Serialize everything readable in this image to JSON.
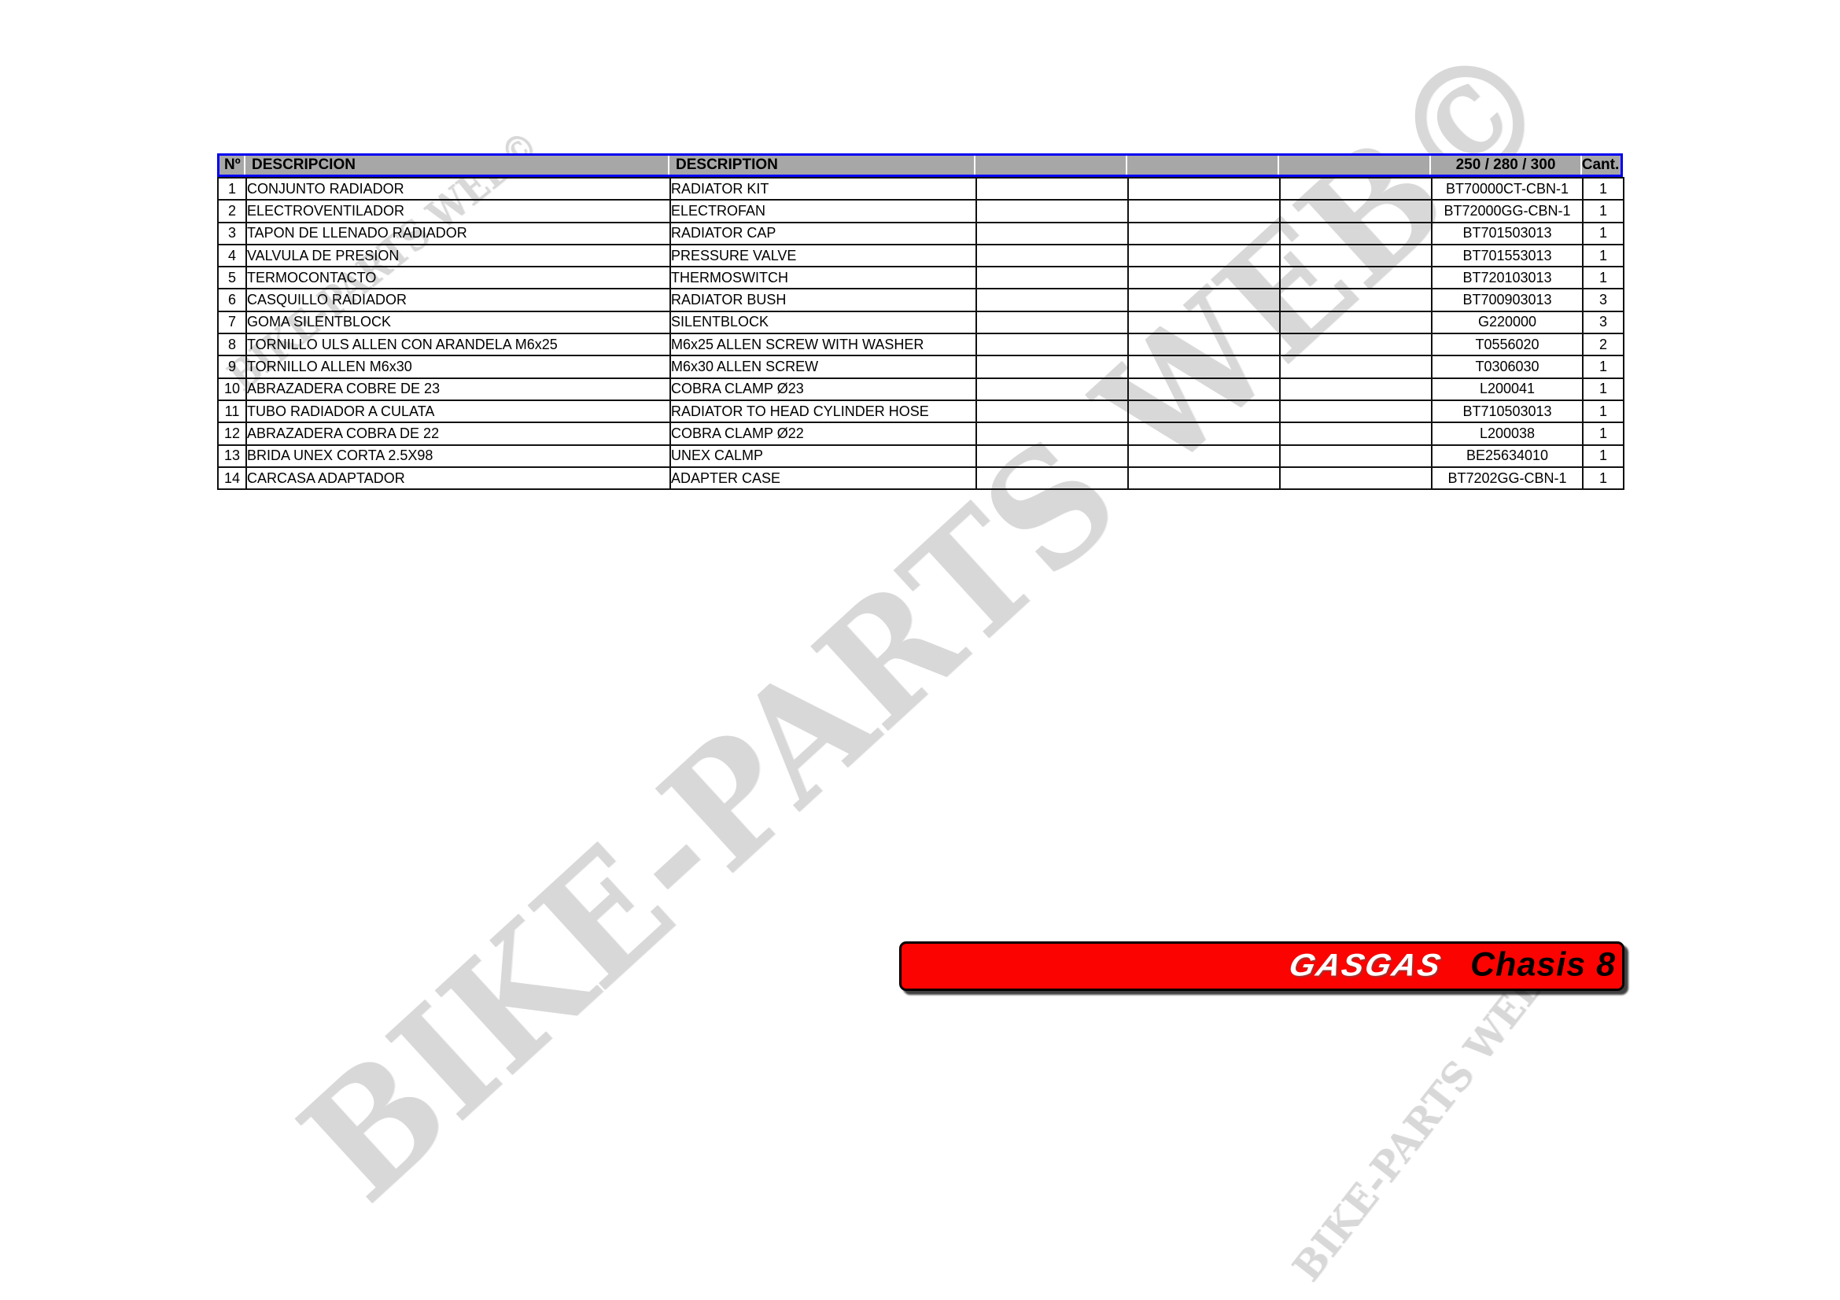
{
  "watermark": {
    "text": "BIKE-PARTS WEB©"
  },
  "table": {
    "headers": {
      "num": "Nº",
      "descripcion": "DESCRIPCION",
      "description": "DESCRIPTION",
      "empty1": "",
      "empty2": "",
      "empty3": "",
      "model": "250 / 280 / 300",
      "cant": "Cant."
    },
    "rows": [
      {
        "num": "1",
        "descripcion": "CONJUNTO RADIADOR",
        "description": "RADIATOR KIT",
        "ref": "BT70000CT-CBN-1",
        "cant": "1"
      },
      {
        "num": "2",
        "descripcion": "ELECTROVENTILADOR",
        "description": "ELECTROFAN",
        "ref": "BT72000GG-CBN-1",
        "cant": "1"
      },
      {
        "num": "3",
        "descripcion": "TAPON DE LLENADO RADIADOR",
        "description": "RADIATOR CAP",
        "ref": "BT701503013",
        "cant": "1"
      },
      {
        "num": "4",
        "descripcion": "VALVULA DE PRESION",
        "description": "PRESSURE VALVE",
        "ref": "BT701553013",
        "cant": "1"
      },
      {
        "num": "5",
        "descripcion": "TERMOCONTACTO",
        "description": "THERMOSWITCH",
        "ref": "BT720103013",
        "cant": "1"
      },
      {
        "num": "6",
        "descripcion": "CASQUILLO RADIADOR",
        "description": "RADIATOR BUSH",
        "ref": "BT700903013",
        "cant": "3"
      },
      {
        "num": "7",
        "descripcion": "GOMA SILENTBLOCK",
        "description": "SILENTBLOCK",
        "ref": "G220000",
        "cant": "3"
      },
      {
        "num": "8",
        "descripcion": "TORNILLO ULS ALLEN CON ARANDELA M6x25",
        "description": "M6x25 ALLEN SCREW WITH WASHER",
        "ref": "T0556020",
        "cant": "2"
      },
      {
        "num": "9",
        "descripcion": "TORNILLO ALLEN M6x30",
        "description": "M6x30 ALLEN SCREW",
        "ref": "T0306030",
        "cant": "1"
      },
      {
        "num": "10",
        "descripcion": "ABRAZADERA COBRE DE 23",
        "description": "COBRA CLAMP  Ø23",
        "ref": "L200041",
        "cant": "1"
      },
      {
        "num": "11",
        "descripcion": "TUBO RADIADOR A CULATA",
        "description": "RADIATOR TO HEAD CYLINDER HOSE",
        "ref": "BT710503013",
        "cant": "1"
      },
      {
        "num": "12",
        "descripcion": "ABRAZADERA COBRA DE 22",
        "description": "COBRA CLAMP Ø22",
        "ref": "L200038",
        "cant": "1"
      },
      {
        "num": "13",
        "descripcion": "BRIDA UNEX CORTA 2.5X98",
        "description": "UNEX CALMP",
        "ref": "BE25634010",
        "cant": "1"
      },
      {
        "num": "14",
        "descripcion": "CARCASA ADAPTADOR",
        "description": "ADAPTER CASE",
        "ref": "BT7202GG-CBN-1",
        "cant": "1"
      }
    ]
  },
  "banner": {
    "brand": "GASGAS",
    "title": "Chasis 8"
  },
  "colors": {
    "accent_red": "#FB0300",
    "header_gray": "#A7A7A7",
    "header_border_blue": "#0202F2",
    "watermark_gray": "#D8D8D8"
  }
}
